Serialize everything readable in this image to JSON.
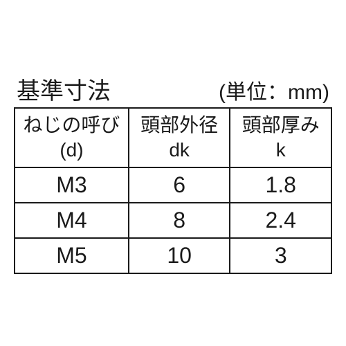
{
  "header": {
    "title": "基準寸法",
    "unit": "(単位：mm)"
  },
  "table": {
    "columns": [
      {
        "line1": "ねじの呼び",
        "line2": "(d)"
      },
      {
        "line1": "頭部外径",
        "line2": "dk"
      },
      {
        "line1": "頭部厚み",
        "line2": "k"
      }
    ],
    "rows": [
      [
        "M3",
        "6",
        "1.8"
      ],
      [
        "M4",
        "8",
        "2.4"
      ],
      [
        "M5",
        "10",
        "3"
      ]
    ],
    "border_color": "#1a1a1a",
    "background_color": "#ffffff",
    "text_color": "#1a1a1a",
    "header_fontsize": 28,
    "cell_fontsize": 32,
    "title_fontsize": 34,
    "unit_fontsize": 30
  }
}
